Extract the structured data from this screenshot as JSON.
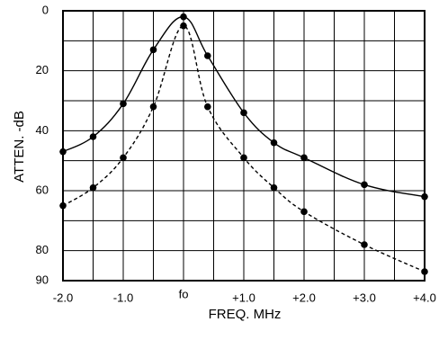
{
  "chart_data": {
    "type": "line",
    "title": "",
    "xlabel": "FREQ. MHz",
    "ylabel": "ATTEN. -dB",
    "x_ticks": [
      {
        "value": -2.0,
        "label": "-2.0"
      },
      {
        "value": -1.0,
        "label": "-1.0"
      },
      {
        "value": 0.0,
        "label": "fo"
      },
      {
        "value": 1.0,
        "label": "+1.0"
      },
      {
        "value": 2.0,
        "label": "+2.0"
      },
      {
        "value": 3.0,
        "label": "+3.0"
      },
      {
        "value": 4.0,
        "label": "+4.0"
      }
    ],
    "y_ticks": [
      {
        "value": 0,
        "label": "0"
      },
      {
        "value": 20,
        "label": "20"
      },
      {
        "value": 40,
        "label": "40"
      },
      {
        "value": 60,
        "label": "60"
      },
      {
        "value": 80,
        "label": "80"
      },
      {
        "value": 90,
        "label": "90"
      }
    ],
    "xlim": [
      -2.0,
      4.0
    ],
    "ylim": [
      0,
      90
    ],
    "y_inverted": true,
    "grid": true,
    "series": [
      {
        "style": "solid",
        "points": [
          {
            "x": -2.0,
            "y": 47
          },
          {
            "x": -1.5,
            "y": 42
          },
          {
            "x": -1.0,
            "y": 31
          },
          {
            "x": -0.5,
            "y": 13
          },
          {
            "x": 0.0,
            "y": 2
          },
          {
            "x": 0.4,
            "y": 15
          },
          {
            "x": 1.0,
            "y": 34
          },
          {
            "x": 1.5,
            "y": 44
          },
          {
            "x": 2.0,
            "y": 49
          },
          {
            "x": 3.0,
            "y": 58
          },
          {
            "x": 4.0,
            "y": 62
          }
        ]
      },
      {
        "style": "dashed",
        "points": [
          {
            "x": -2.0,
            "y": 65
          },
          {
            "x": -1.5,
            "y": 59
          },
          {
            "x": -1.0,
            "y": 49
          },
          {
            "x": -0.5,
            "y": 32
          },
          {
            "x": 0.0,
            "y": 5
          },
          {
            "x": 0.4,
            "y": 32
          },
          {
            "x": 1.0,
            "y": 49
          },
          {
            "x": 1.5,
            "y": 59
          },
          {
            "x": 2.0,
            "y": 67
          },
          {
            "x": 3.0,
            "y": 78
          },
          {
            "x": 4.0,
            "y": 87
          }
        ]
      }
    ]
  }
}
